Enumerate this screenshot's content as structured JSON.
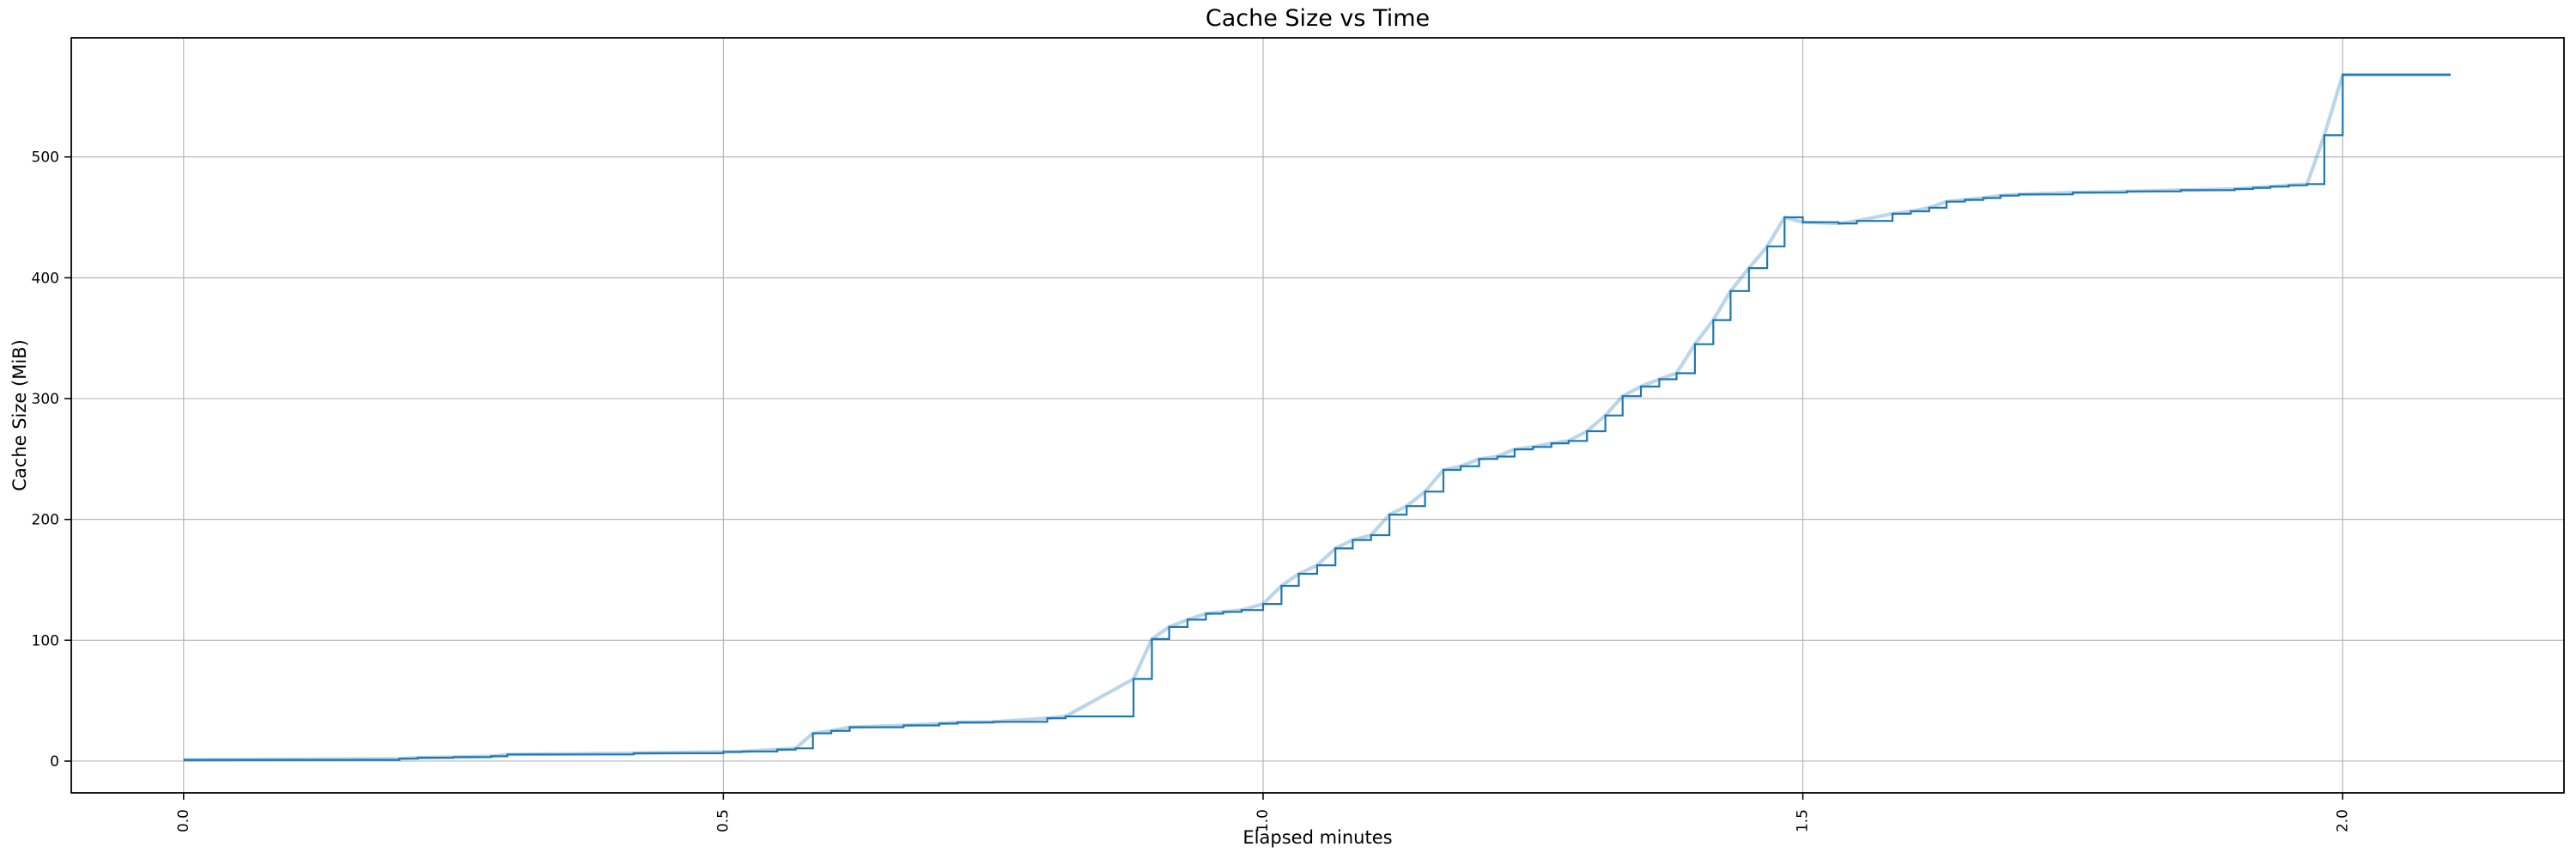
{
  "chart_data": {
    "type": "line",
    "drawstyle": "steps-post",
    "title": "Cache Size vs Time",
    "xlabel": "Elapsed minutes",
    "ylabel": "Cache Size (MiB)",
    "grid": true,
    "legend": "none",
    "xlim": [
      -0.104,
      2.205
    ],
    "ylim": [
      -26.3,
      598.6
    ],
    "x_tick_values": [
      0.0,
      0.5,
      1.0,
      1.5,
      2.0
    ],
    "x_tick_labels": [
      "0.0",
      "0.5",
      "1.0",
      "1.5",
      "2.0"
    ],
    "x_tick_rotation_deg": 90,
    "y_tick_values": [
      0,
      100,
      200,
      300,
      400,
      500
    ],
    "y_tick_labels": [
      "0",
      "100",
      "200",
      "300",
      "400",
      "500"
    ],
    "colors": {
      "line": "#1f77b4",
      "line_halo": "rgba(31,119,180,0.30)",
      "grid": "#b0b0b0",
      "spine": "#000000",
      "background": "#ffffff"
    },
    "series": [
      {
        "name": "cache-size",
        "points": [
          [
            0.0,
            1
          ],
          [
            0.2,
            2
          ],
          [
            0.217,
            2.8
          ],
          [
            0.25,
            3.3
          ],
          [
            0.285,
            4
          ],
          [
            0.3,
            5.5
          ],
          [
            0.417,
            6.5
          ],
          [
            0.5,
            7.6
          ],
          [
            0.517,
            8
          ],
          [
            0.55,
            9.5
          ],
          [
            0.567,
            10.5
          ],
          [
            0.583,
            23
          ],
          [
            0.6,
            25
          ],
          [
            0.617,
            28
          ],
          [
            0.667,
            29.5
          ],
          [
            0.7,
            31
          ],
          [
            0.717,
            32
          ],
          [
            0.75,
            32.5
          ],
          [
            0.8,
            35.5
          ],
          [
            0.817,
            37
          ],
          [
            0.88,
            68
          ],
          [
            0.897,
            101
          ],
          [
            0.913,
            111
          ],
          [
            0.93,
            117
          ],
          [
            0.947,
            122
          ],
          [
            0.963,
            123.5
          ],
          [
            0.98,
            125
          ],
          [
            1.0,
            130
          ],
          [
            1.017,
            145
          ],
          [
            1.033,
            155
          ],
          [
            1.05,
            162
          ],
          [
            1.067,
            176
          ],
          [
            1.083,
            183
          ],
          [
            1.1,
            187
          ],
          [
            1.117,
            204
          ],
          [
            1.133,
            211
          ],
          [
            1.15,
            223
          ],
          [
            1.167,
            241
          ],
          [
            1.183,
            244
          ],
          [
            1.2,
            250
          ],
          [
            1.217,
            252
          ],
          [
            1.233,
            258
          ],
          [
            1.25,
            260
          ],
          [
            1.267,
            263
          ],
          [
            1.283,
            265
          ],
          [
            1.3,
            273
          ],
          [
            1.317,
            286
          ],
          [
            1.333,
            302
          ],
          [
            1.35,
            310
          ],
          [
            1.367,
            316
          ],
          [
            1.383,
            321
          ],
          [
            1.4,
            345
          ],
          [
            1.417,
            365
          ],
          [
            1.433,
            389
          ],
          [
            1.45,
            408
          ],
          [
            1.467,
            426
          ],
          [
            1.483,
            450
          ],
          [
            1.5,
            446
          ],
          [
            1.533,
            445
          ],
          [
            1.55,
            447
          ],
          [
            1.583,
            453
          ],
          [
            1.6,
            455
          ],
          [
            1.617,
            458
          ],
          [
            1.633,
            463
          ],
          [
            1.65,
            464.5
          ],
          [
            1.667,
            466
          ],
          [
            1.683,
            468
          ],
          [
            1.7,
            469
          ],
          [
            1.75,
            470.5
          ],
          [
            1.8,
            471.5
          ],
          [
            1.85,
            472.5
          ],
          [
            1.9,
            473.5
          ],
          [
            1.917,
            474.5
          ],
          [
            1.933,
            475.5
          ],
          [
            1.95,
            476.5
          ],
          [
            1.967,
            477.5
          ],
          [
            1.983,
            518
          ],
          [
            2.0,
            568
          ],
          [
            2.1,
            568
          ]
        ]
      }
    ]
  }
}
